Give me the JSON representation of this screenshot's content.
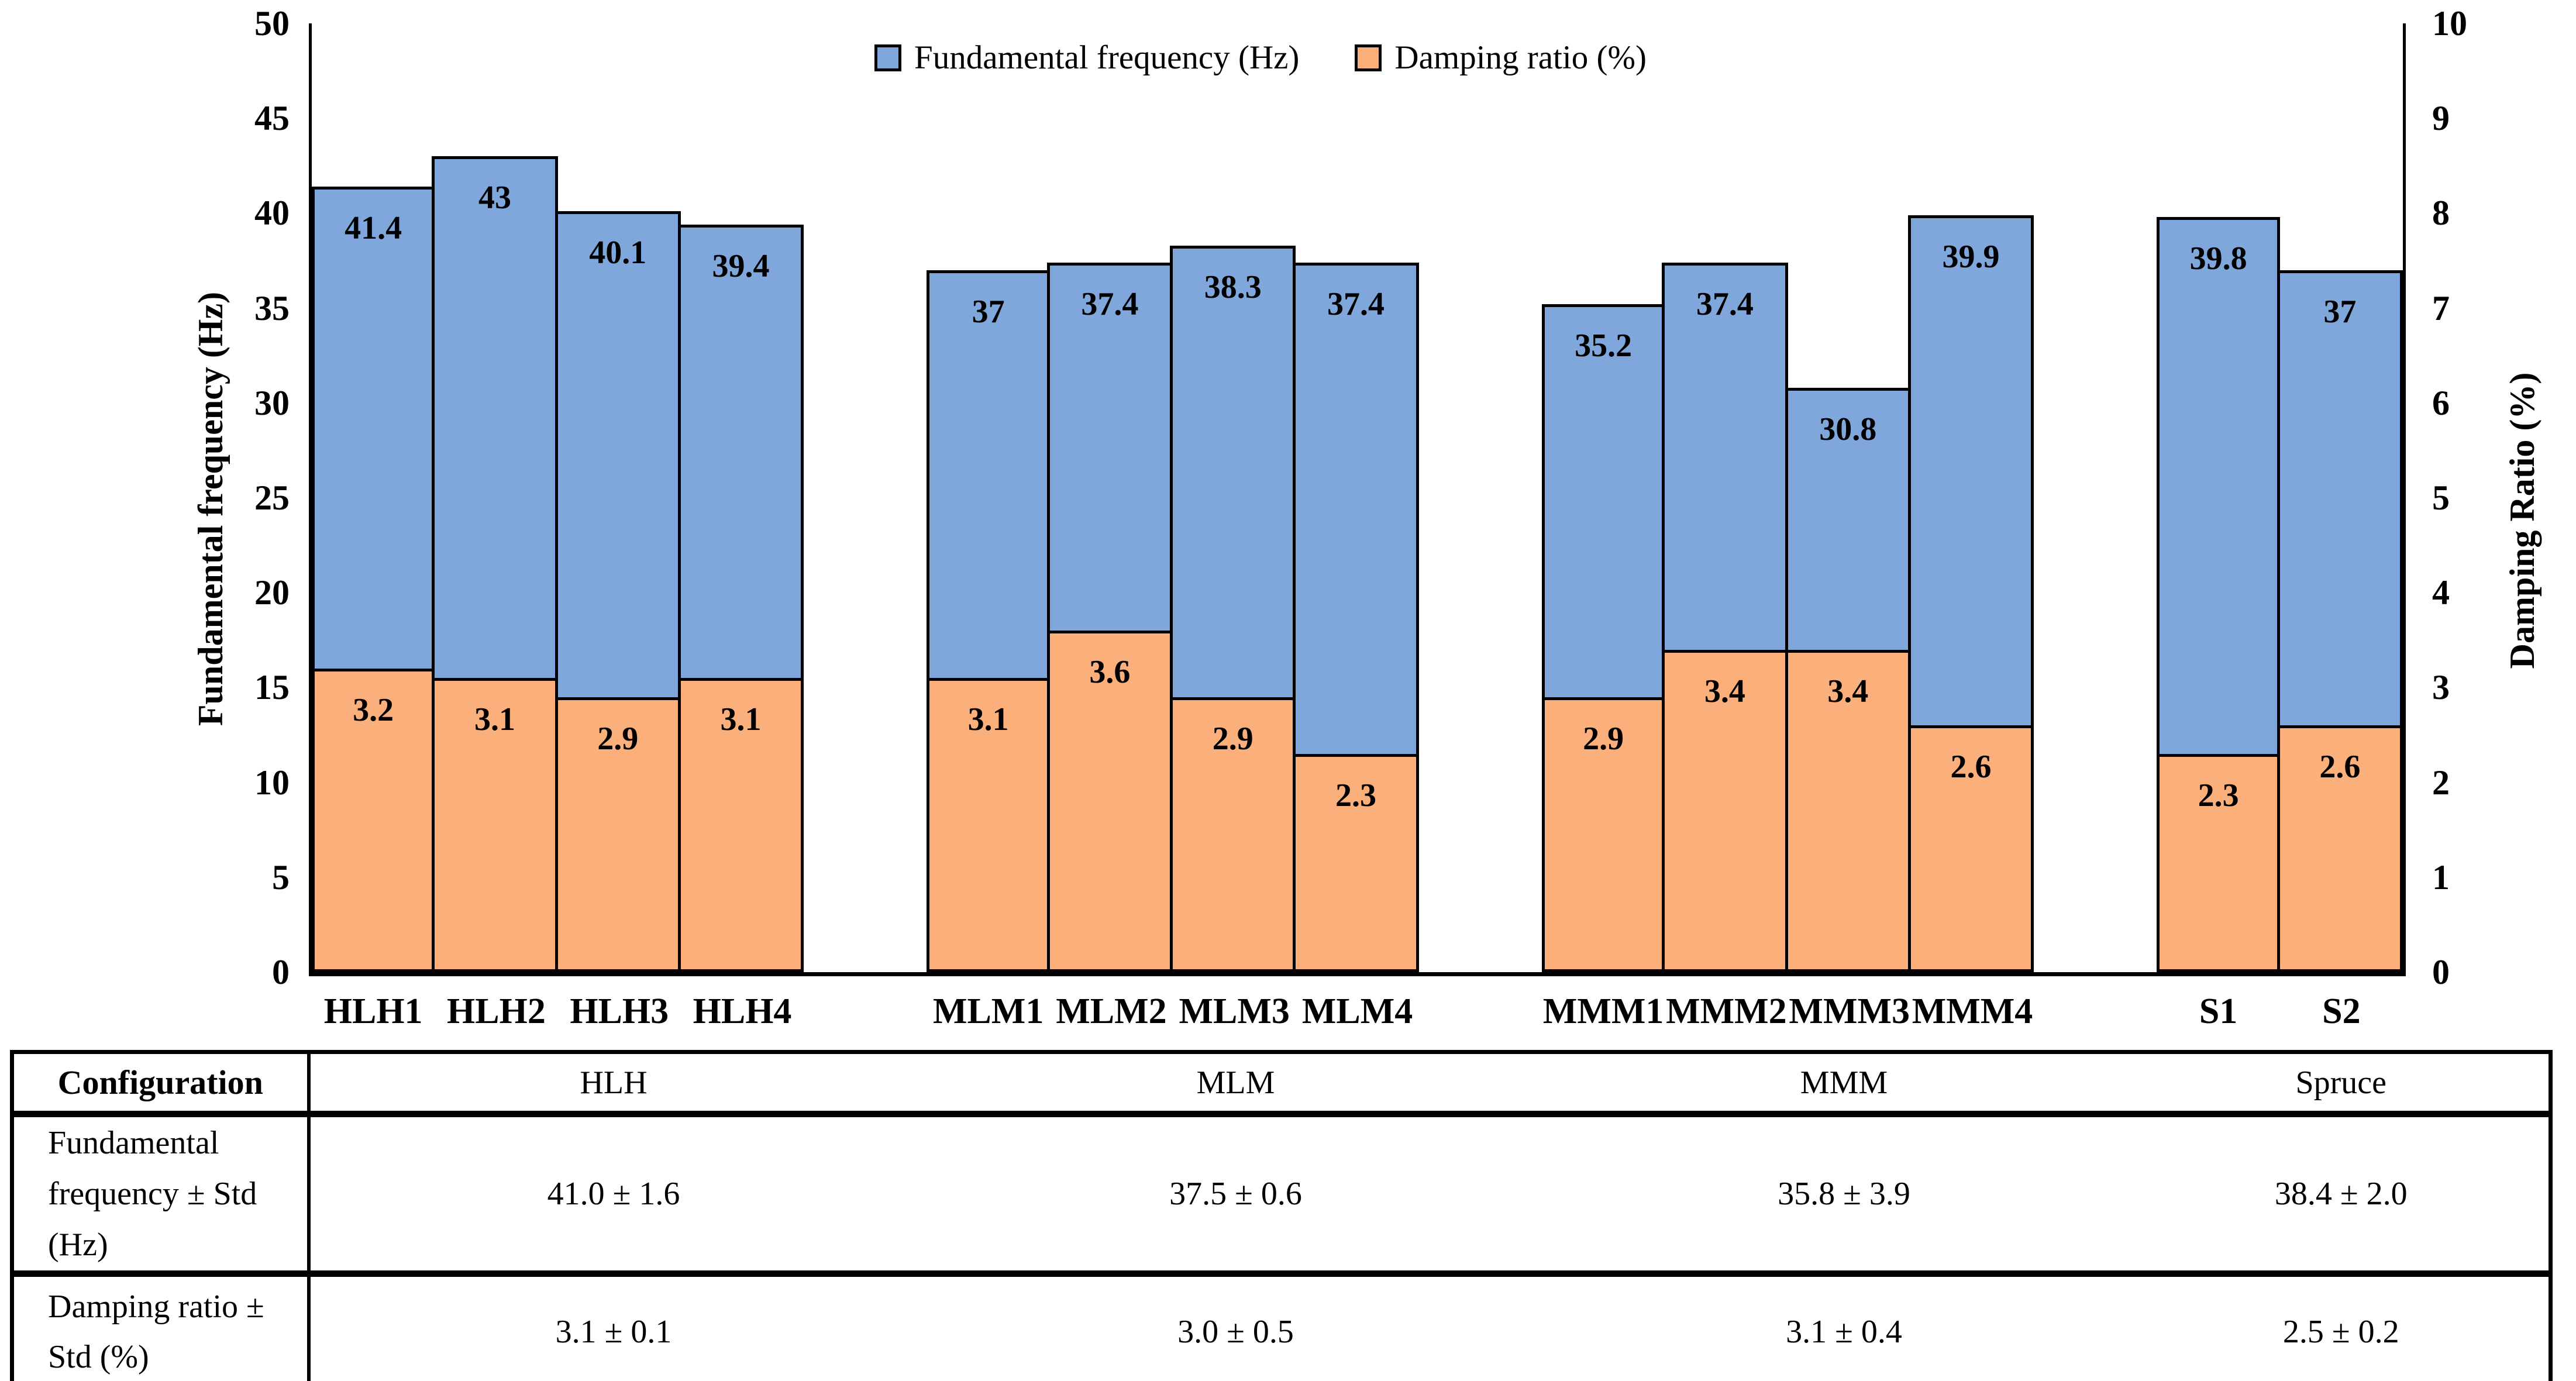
{
  "chart_data": {
    "type": "bar",
    "title": "",
    "grid": false,
    "legend": {
      "position": "top-center",
      "entries": [
        {
          "label": "Fundamental frequency (Hz)",
          "color": "#7FA7DB"
        },
        {
          "label": "Damping ratio (%)",
          "color": "#FBB07B"
        }
      ]
    },
    "left_axis": {
      "title": "Fundamental frequency (Hz)",
      "min": 0,
      "max": 50,
      "step": 5,
      "ticks": [
        0,
        5,
        10,
        15,
        20,
        25,
        30,
        35,
        40,
        45,
        50
      ]
    },
    "right_axis": {
      "title": "Damping Ratio (%)",
      "min": 0,
      "max": 10,
      "step": 1,
      "ticks": [
        0,
        1,
        2,
        3,
        4,
        5,
        6,
        7,
        8,
        9,
        10
      ]
    },
    "groups": [
      {
        "name": "HLH",
        "categories": [
          "HLH1",
          "HLH2",
          "HLH3",
          "HLH4"
        ]
      },
      {
        "name": "MLM",
        "categories": [
          "MLM1",
          "MLM2",
          "MLM3",
          "MLM4"
        ]
      },
      {
        "name": "MMM",
        "categories": [
          "MMM1",
          "MMM2",
          "MMM3",
          "MMM4"
        ]
      },
      {
        "name": "Spruce",
        "categories": [
          "S1",
          "S2"
        ]
      }
    ],
    "series": [
      {
        "name": "Fundamental frequency (Hz)",
        "axis": "left",
        "color": "#7FA7DB",
        "values": [
          41.4,
          43,
          40.1,
          39.4,
          37,
          37.4,
          38.3,
          37.4,
          35.2,
          37.4,
          30.8,
          39.9,
          39.8,
          37
        ]
      },
      {
        "name": "Damping ratio (%)",
        "axis": "right",
        "color": "#FBB07B",
        "values": [
          3.2,
          3.1,
          2.9,
          3.1,
          3.1,
          3.6,
          2.9,
          2.3,
          2.9,
          3.4,
          3.4,
          2.6,
          2.3,
          2.6
        ]
      }
    ]
  },
  "table": {
    "header": [
      "Configuration",
      "HLH",
      "MLM",
      "MMM",
      "Spruce"
    ],
    "rows": [
      {
        "label": "Fundamental frequency ± Std (Hz)",
        "values": [
          "41.0 ± 1.6",
          "37.5 ± 0.6",
          "35.8 ± 3.9",
          "38.4 ± 2.0"
        ]
      },
      {
        "label": "Damping ratio ± Std (%)",
        "values": [
          "3.1 ± 0.1",
          "3.0 ± 0.5",
          "3.1 ± 0.4",
          "2.5 ± 0.2"
        ]
      }
    ]
  }
}
